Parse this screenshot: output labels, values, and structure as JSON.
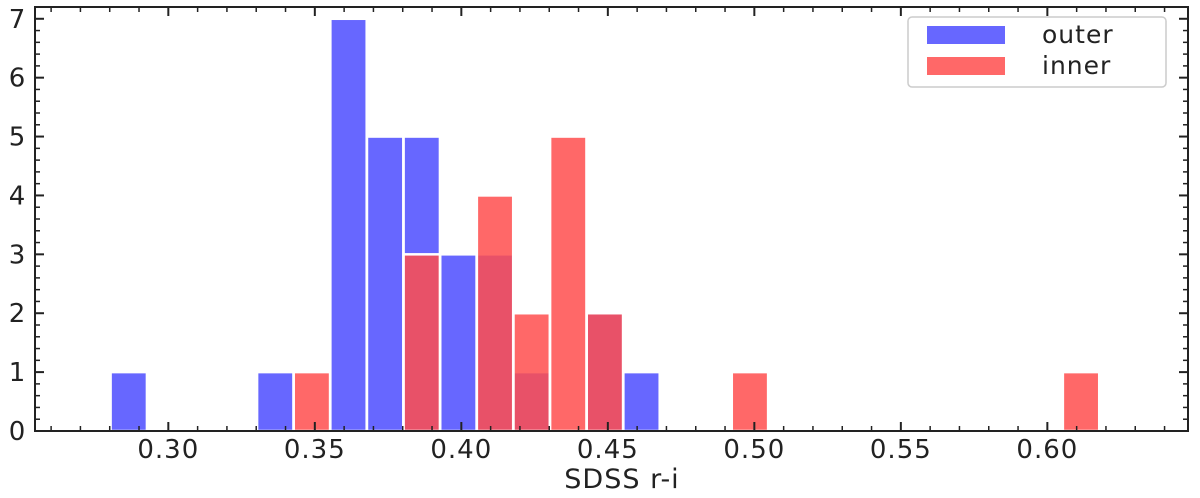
{
  "chart_data": {
    "type": "bar",
    "subtype": "overlapping-histogram",
    "xlabel": "SDSS r-i",
    "ylabel": "",
    "xlim": [
      0.2545,
      0.648
    ],
    "ylim": [
      0,
      7.2
    ],
    "xticks": [
      0.3,
      0.35,
      0.4,
      0.45,
      0.5,
      0.55,
      0.6
    ],
    "xtick_labels": [
      "0.30",
      "0.35",
      "0.40",
      "0.45",
      "0.50",
      "0.55",
      "0.60"
    ],
    "yticks": [
      0,
      1,
      2,
      3,
      4,
      5,
      6,
      7
    ],
    "ytick_labels": [
      "0",
      "1",
      "2",
      "3",
      "4",
      "5",
      "6",
      "7"
    ],
    "bin_width": 0.0124,
    "grid": false,
    "legend_position": "top-right",
    "series": [
      {
        "name": "outer",
        "color": "#5a5aff",
        "opacity": 0.92,
        "bins": [
          {
            "center": 0.2865,
            "count": 1
          },
          {
            "center": 0.3365,
            "count": 1
          },
          {
            "center": 0.3615,
            "count": 7
          },
          {
            "center": 0.374,
            "count": 5
          },
          {
            "center": 0.3865,
            "count": 5
          },
          {
            "center": 0.399,
            "count": 3
          },
          {
            "center": 0.4115,
            "count": 3
          },
          {
            "center": 0.424,
            "count": 1
          },
          {
            "center": 0.449,
            "count": 2
          },
          {
            "center": 0.4615,
            "count": 1
          }
        ]
      },
      {
        "name": "inner",
        "color": "#ff4d4d",
        "opacity": 0.85,
        "bins": [
          {
            "center": 0.349,
            "count": 1
          },
          {
            "center": 0.3865,
            "count": 3
          },
          {
            "center": 0.4115,
            "count": 4
          },
          {
            "center": 0.424,
            "count": 2
          },
          {
            "center": 0.4365,
            "count": 5
          },
          {
            "center": 0.449,
            "count": 2
          },
          {
            "center": 0.4985,
            "count": 1
          },
          {
            "center": 0.6115,
            "count": 1
          }
        ]
      }
    ]
  }
}
